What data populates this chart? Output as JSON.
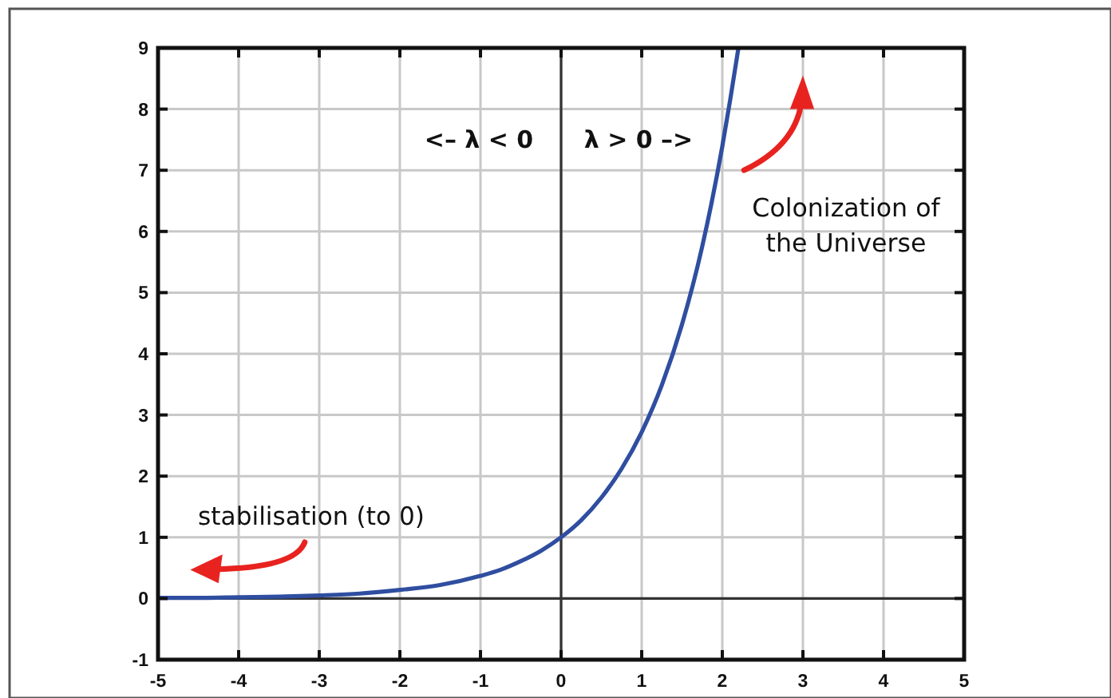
{
  "chart_data": {
    "type": "line",
    "x": [
      -5,
      -4.5,
      -4,
      -3.5,
      -3,
      -2.5,
      -2,
      -1.5,
      -1,
      -0.75,
      -0.5,
      -0.25,
      0,
      0.25,
      0.5,
      0.75,
      1,
      1.25,
      1.5,
      1.75,
      2,
      2.1,
      2.2
    ],
    "series": [
      {
        "color": "#2f4ea0",
        "values": [
          0.01,
          0.01,
          0.02,
          0.03,
          0.05,
          0.08,
          0.14,
          0.22,
          0.37,
          0.47,
          0.61,
          0.78,
          1,
          1.28,
          1.65,
          2.12,
          2.72,
          3.49,
          4.48,
          5.75,
          7.39,
          8.17,
          9
        ]
      }
    ],
    "xlim": [
      -5,
      5
    ],
    "ylim": [
      -1,
      9
    ],
    "xticks": [
      -5,
      -4,
      -3,
      -2,
      -1,
      0,
      1,
      2,
      3,
      4,
      5
    ],
    "yticks": [
      -1,
      0,
      1,
      2,
      3,
      4,
      5,
      6,
      7,
      8,
      9
    ],
    "grid": true,
    "annotations": [
      "<– λ < 0",
      "λ > 0 –>",
      "Colonization of the Universe",
      "stabilisation (to 0)"
    ]
  }
}
